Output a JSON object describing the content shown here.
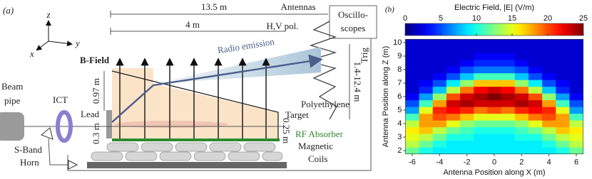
{
  "diagram": {
    "panel_label": "(a)",
    "labels": {
      "axis_z": "z",
      "axis_y": "y",
      "axis_x": "x",
      "dist_long": "13.5 m",
      "antennas": "Antennas",
      "dist_short": "4 m",
      "polarization": "H,V pol.",
      "scope_1": "Oscillo-",
      "scope_2": "scopes",
      "trig": "Trig",
      "antenna_height": "1.4-12.4 m",
      "b_field": "B-Field",
      "radio": "Radio emission",
      "height_target": "0.97 m",
      "lead": "Lead",
      "height_beam": "0.3 m",
      "target_1": "Polyethylene",
      "target_2": "Target",
      "height_end": "0.25 m",
      "rf": "RF Absorber",
      "coils_1": "Magnetic",
      "coils_2": "Coils",
      "beam_1": "Beam",
      "beam_2": "pipe",
      "ict": "ICT",
      "horn_1": "S-Band",
      "horn_2": "Horn"
    }
  },
  "chart_data": {
    "type": "heatmap",
    "panel_label": "(b)",
    "colorbar_label": "Electric Field, |E| (V/m)",
    "x_label": "Antenna Position along X (m)",
    "y_label": "Antenna Position along Z (m)",
    "x": [
      -6,
      -5,
      -4,
      -3,
      -2,
      -1,
      0,
      1,
      2,
      3,
      4,
      5,
      6
    ],
    "y": [
      2,
      2.5,
      3,
      3.5,
      4,
      4.5,
      5,
      5.5,
      6,
      6.5,
      7,
      7.5,
      8,
      8.5,
      9,
      9.5,
      10
    ],
    "z": [
      [
        12,
        10,
        9,
        9,
        9,
        9,
        9,
        9,
        9,
        9,
        9,
        10,
        12
      ],
      [
        14,
        12,
        10,
        9,
        9,
        9,
        9,
        9,
        9,
        9,
        10,
        12,
        14
      ],
      [
        15,
        14,
        12,
        10,
        10,
        9,
        9,
        9,
        10,
        10,
        12,
        14,
        15
      ],
      [
        16,
        17,
        14,
        12,
        11,
        10,
        10,
        10,
        11,
        12,
        14,
        17,
        16
      ],
      [
        14,
        18,
        18,
        15,
        13,
        12,
        12,
        12,
        13,
        15,
        18,
        18,
        14
      ],
      [
        11,
        18,
        20,
        19,
        17,
        15,
        15,
        15,
        17,
        19,
        20,
        18,
        11
      ],
      [
        7,
        15,
        21,
        22,
        21,
        19,
        20,
        19,
        21,
        22,
        21,
        15,
        7
      ],
      [
        5,
        11,
        18,
        23,
        24,
        23,
        23,
        23,
        24,
        23,
        18,
        11,
        5
      ],
      [
        3,
        7,
        13,
        20,
        23,
        24,
        25,
        24,
        23,
        20,
        13,
        7,
        3
      ],
      [
        2,
        4,
        8,
        14,
        19,
        22,
        23,
        22,
        19,
        14,
        8,
        4,
        2
      ],
      [
        2,
        3,
        5,
        9,
        13,
        17,
        17,
        17,
        13,
        9,
        5,
        3,
        2
      ],
      [
        2,
        2,
        3,
        5,
        8,
        11,
        11,
        11,
        8,
        5,
        3,
        2,
        2
      ],
      [
        2,
        2,
        2,
        3,
        5,
        6,
        6,
        6,
        5,
        3,
        2,
        2,
        2
      ],
      [
        2,
        2,
        2,
        2,
        3,
        4,
        4,
        4,
        3,
        2,
        2,
        2,
        2
      ],
      [
        2,
        2,
        2,
        2,
        2,
        3,
        3,
        3,
        2,
        2,
        2,
        2,
        2
      ],
      [
        2,
        2,
        2,
        2,
        2,
        2,
        2,
        2,
        2,
        2,
        2,
        2,
        2
      ],
      [
        2,
        2,
        2,
        2,
        2,
        2,
        2,
        2,
        2,
        2,
        2,
        2,
        2
      ]
    ],
    "xlim": [
      -6.5,
      6.5
    ],
    "ylim": [
      1.75,
      10.25
    ],
    "xticks": [
      -6,
      -4,
      -2,
      0,
      2,
      4,
      6
    ],
    "yticks": [
      2,
      3,
      4,
      5,
      6,
      7,
      8,
      9,
      10
    ],
    "zlim": [
      0,
      25
    ],
    "zticks": [
      0,
      5,
      10,
      15,
      20,
      25
    ],
    "colormap": "jet"
  }
}
